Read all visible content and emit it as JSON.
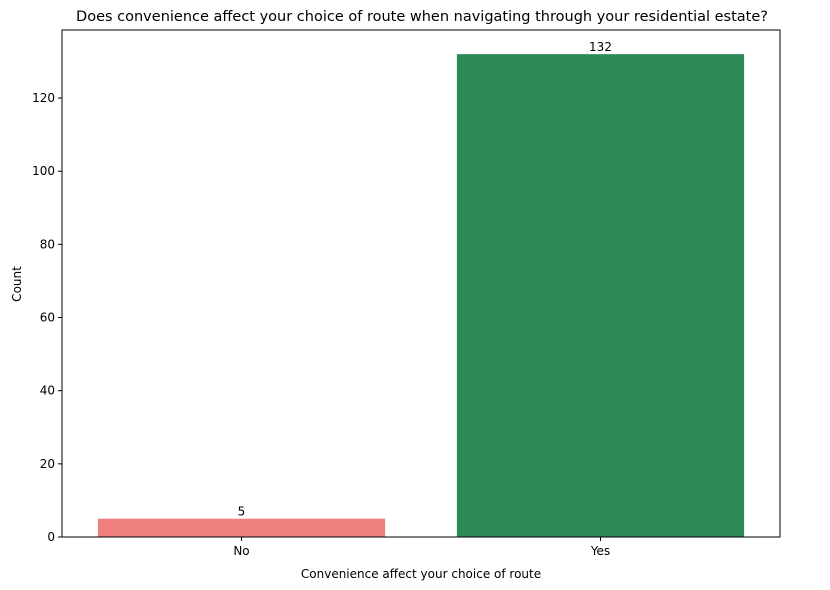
{
  "chart_data": {
    "type": "bar",
    "title": "Does convenience affect your choice of route when navigating through your residential estate?",
    "xlabel": "Convenience affect your choice of route",
    "ylabel": "Count",
    "categories": [
      "No",
      "Yes"
    ],
    "values": [
      5,
      132
    ],
    "data_labels": [
      "5",
      "132"
    ],
    "colors": [
      "#f08080",
      "#2e8b57"
    ],
    "ylim": [
      0,
      138.6
    ],
    "yticks": [
      0,
      20,
      40,
      60,
      80,
      100,
      120
    ],
    "grid": false,
    "legend": "none"
  }
}
